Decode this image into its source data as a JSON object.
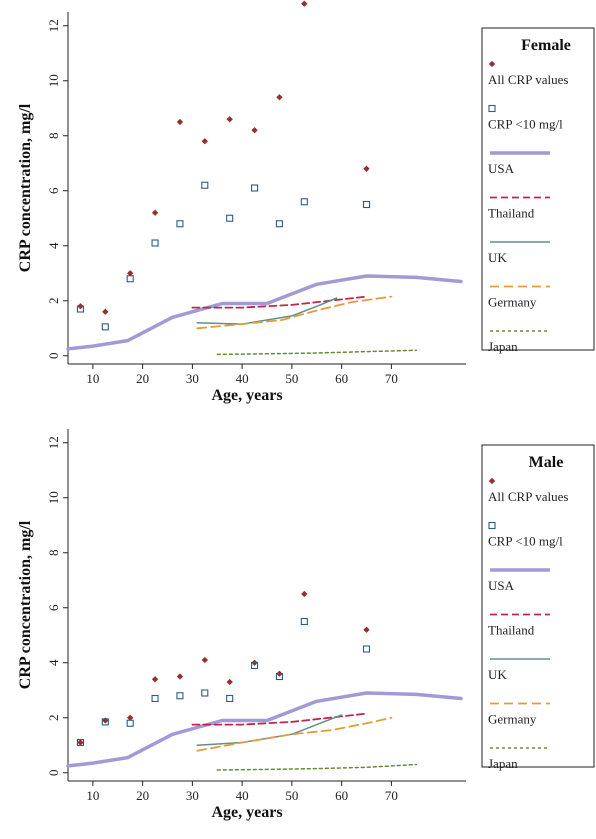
{
  "chart_data": [
    {
      "type": "scatter",
      "title": "",
      "legend_title": "Female",
      "xlabel": "Age, years",
      "ylabel": "CRP concentration, mg/l",
      "xlim": [
        5,
        85
      ],
      "ylim": [
        -0.3,
        12.5
      ],
      "xticks": [
        10,
        20,
        30,
        40,
        50,
        60,
        70
      ],
      "yticks": [
        0,
        2,
        4,
        6,
        8,
        10,
        12
      ],
      "grid": false,
      "legend_position": "right",
      "series": [
        {
          "name": "All CRP values",
          "kind": "diamond",
          "color": "#9b2d2a",
          "points": [
            [
              7.5,
              1.8
            ],
            [
              12.5,
              1.6
            ],
            [
              17.5,
              3.0
            ],
            [
              22.5,
              5.2
            ],
            [
              27.5,
              8.5
            ],
            [
              32.5,
              7.8
            ],
            [
              37.5,
              8.6
            ],
            [
              42.5,
              8.2
            ],
            [
              47.5,
              9.4
            ],
            [
              52.5,
              12.8
            ],
            [
              65,
              6.8
            ]
          ]
        },
        {
          "name": "CRP <10 mg/l",
          "kind": "square",
          "color": "#2a5d86",
          "points": [
            [
              7.5,
              1.7
            ],
            [
              12.5,
              1.05
            ],
            [
              17.5,
              2.8
            ],
            [
              22.5,
              4.1
            ],
            [
              27.5,
              4.8
            ],
            [
              32.5,
              6.2
            ],
            [
              37.5,
              5.0
            ],
            [
              42.5,
              6.1
            ],
            [
              47.5,
              4.8
            ],
            [
              52.5,
              5.6
            ],
            [
              65,
              5.5
            ]
          ]
        },
        {
          "name": "USA",
          "kind": "line",
          "color": "#a09ad6",
          "dash": "",
          "width": 3.5,
          "points": [
            [
              5,
              0.25
            ],
            [
              10,
              0.35
            ],
            [
              17,
              0.55
            ],
            [
              26,
              1.4
            ],
            [
              36,
              1.9
            ],
            [
              45,
              1.9
            ],
            [
              55,
              2.6
            ],
            [
              65,
              2.9
            ],
            [
              75,
              2.85
            ],
            [
              84,
              2.7
            ]
          ]
        },
        {
          "name": "Thailand",
          "kind": "line",
          "color": "#c0264b",
          "dash": "7,4",
          "width": 1.8,
          "points": [
            [
              30,
              1.75
            ],
            [
              40,
              1.75
            ],
            [
              50,
              1.85
            ],
            [
              60,
              2.05
            ],
            [
              65,
              2.15
            ]
          ]
        },
        {
          "name": "UK",
          "kind": "line",
          "color": "#5f8f8c",
          "dash": "",
          "width": 1.5,
          "points": [
            [
              31,
              1.2
            ],
            [
              40,
              1.15
            ],
            [
              50,
              1.45
            ],
            [
              55,
              1.8
            ],
            [
              59,
              2.1
            ]
          ]
        },
        {
          "name": "Germany",
          "kind": "line",
          "color": "#e39b3c",
          "dash": "9,5",
          "width": 1.8,
          "points": [
            [
              31,
              1.0
            ],
            [
              40,
              1.15
            ],
            [
              48,
              1.3
            ],
            [
              55,
              1.65
            ],
            [
              62,
              1.95
            ],
            [
              70,
              2.15
            ]
          ]
        },
        {
          "name": "Japan",
          "kind": "line",
          "color": "#6c8a3b",
          "dash": "3,3",
          "width": 1.5,
          "points": [
            [
              35,
              0.05
            ],
            [
              45,
              0.07
            ],
            [
              55,
              0.1
            ],
            [
              65,
              0.15
            ],
            [
              75,
              0.2
            ]
          ]
        }
      ]
    },
    {
      "type": "scatter",
      "title": "",
      "legend_title": "Male",
      "xlabel": "Age, years",
      "ylabel": "CRP concentration, mg/l",
      "xlim": [
        5,
        85
      ],
      "ylim": [
        -0.3,
        12.5
      ],
      "xticks": [
        10,
        20,
        30,
        40,
        50,
        60,
        70
      ],
      "yticks": [
        0,
        2,
        4,
        6,
        8,
        10,
        12
      ],
      "grid": false,
      "legend_position": "right",
      "series": [
        {
          "name": "All CRP values",
          "kind": "diamond",
          "color": "#9b2d2a",
          "points": [
            [
              7.5,
              1.1
            ],
            [
              12.5,
              1.9
            ],
            [
              17.5,
              2.0
            ],
            [
              22.5,
              3.4
            ],
            [
              27.5,
              3.5
            ],
            [
              32.5,
              4.1
            ],
            [
              37.5,
              3.3
            ],
            [
              42.5,
              4.0
            ],
            [
              47.5,
              3.6
            ],
            [
              52.5,
              6.5
            ],
            [
              65,
              5.2
            ]
          ]
        },
        {
          "name": "CRP <10 mg/l",
          "kind": "square",
          "color": "#2a5d86",
          "points": [
            [
              7.5,
              1.1
            ],
            [
              12.5,
              1.85
            ],
            [
              17.5,
              1.8
            ],
            [
              22.5,
              2.7
            ],
            [
              27.5,
              2.8
            ],
            [
              32.5,
              2.9
            ],
            [
              37.5,
              2.7
            ],
            [
              42.5,
              3.9
            ],
            [
              47.5,
              3.5
            ],
            [
              52.5,
              5.5
            ],
            [
              65,
              4.5
            ]
          ]
        },
        {
          "name": "USA",
          "kind": "line",
          "color": "#a09ad6",
          "dash": "",
          "width": 3.5,
          "points": [
            [
              5,
              0.25
            ],
            [
              10,
              0.35
            ],
            [
              17,
              0.55
            ],
            [
              26,
              1.4
            ],
            [
              36,
              1.9
            ],
            [
              45,
              1.9
            ],
            [
              55,
              2.6
            ],
            [
              65,
              2.9
            ],
            [
              75,
              2.85
            ],
            [
              84,
              2.7
            ]
          ]
        },
        {
          "name": "Thailand",
          "kind": "line",
          "color": "#c0264b",
          "dash": "7,4",
          "width": 1.8,
          "points": [
            [
              30,
              1.75
            ],
            [
              40,
              1.75
            ],
            [
              50,
              1.85
            ],
            [
              60,
              2.05
            ],
            [
              65,
              2.15
            ]
          ]
        },
        {
          "name": "UK",
          "kind": "line",
          "color": "#5f8f8c",
          "dash": "",
          "width": 1.5,
          "points": [
            [
              31,
              1.0
            ],
            [
              40,
              1.1
            ],
            [
              50,
              1.4
            ],
            [
              55,
              1.75
            ],
            [
              60,
              2.1
            ]
          ]
        },
        {
          "name": "Germany",
          "kind": "line",
          "color": "#e39b3c",
          "dash": "9,5",
          "width": 1.8,
          "points": [
            [
              31,
              0.8
            ],
            [
              40,
              1.1
            ],
            [
              50,
              1.4
            ],
            [
              58,
              1.55
            ],
            [
              65,
              1.8
            ],
            [
              70,
              2.0
            ]
          ]
        },
        {
          "name": "Japan",
          "kind": "line",
          "color": "#6c8a3b",
          "dash": "3,3",
          "width": 1.5,
          "points": [
            [
              35,
              0.1
            ],
            [
              45,
              0.12
            ],
            [
              55,
              0.15
            ],
            [
              65,
              0.2
            ],
            [
              75,
              0.3
            ]
          ]
        }
      ]
    }
  ]
}
